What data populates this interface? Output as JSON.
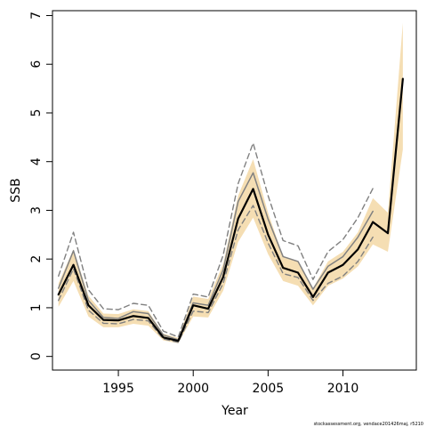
{
  "chart_data": {
    "type": "line",
    "xlabel": "Year",
    "ylabel": "SSB",
    "xlim": [
      1990.6,
      2014.9
    ],
    "ylim": [
      -0.28,
      7.1
    ],
    "x_ticks": [
      1995,
      2000,
      2005,
      2010
    ],
    "x_tick_labels": [
      "1995",
      "2000",
      "2005",
      "2010"
    ],
    "y_ticks": [
      0,
      1,
      2,
      3,
      4,
      5,
      6,
      7
    ],
    "y_tick_labels": [
      "0",
      "1",
      "2",
      "3",
      "4",
      "5",
      "6",
      "7"
    ],
    "grid": false,
    "years": [
      1991,
      1992,
      1993,
      1994,
      1995,
      1996,
      1997,
      1998,
      1999,
      2000,
      2001,
      2002,
      2003,
      2004,
      2005,
      2006,
      2007,
      2008,
      2009,
      2010,
      2011,
      2012,
      2013,
      2014
    ],
    "band_color": "#f5deb3",
    "series": [
      {
        "style": "band",
        "x": [
          1991,
          1992,
          1993,
          1994,
          1995,
          1996,
          1997,
          1998,
          1999,
          2000,
          2001,
          2002,
          2003,
          2004,
          2005,
          2006,
          2007,
          2008,
          2009,
          2010,
          2011,
          2012,
          2013,
          2014
        ],
        "lower": [
          1.02,
          1.55,
          0.82,
          0.6,
          0.6,
          0.67,
          0.63,
          0.33,
          0.27,
          0.82,
          0.8,
          1.35,
          2.35,
          2.85,
          2.1,
          1.55,
          1.45,
          1.05,
          1.45,
          1.6,
          1.85,
          2.3,
          2.15,
          4.25
        ],
        "upper": [
          1.5,
          2.2,
          1.25,
          0.88,
          0.87,
          0.97,
          0.93,
          0.47,
          0.38,
          1.23,
          1.18,
          1.9,
          3.3,
          4.05,
          2.95,
          2.05,
          1.95,
          1.4,
          1.95,
          2.15,
          2.55,
          3.25,
          2.95,
          6.85
        ]
      },
      {
        "style": "solid-black",
        "color": "#000000",
        "x": [
          1991,
          1992,
          1993,
          1994,
          1995,
          1996,
          1997,
          1998,
          1999,
          2000,
          2001,
          2002,
          2003,
          2004,
          2005,
          2006,
          2007,
          2008,
          2009,
          2010,
          2011,
          2012,
          2013,
          2014
        ],
        "values": [
          1.27,
          1.88,
          1.05,
          0.75,
          0.74,
          0.83,
          0.79,
          0.39,
          0.32,
          1.05,
          0.98,
          1.63,
          2.83,
          3.44,
          2.5,
          1.82,
          1.72,
          1.22,
          1.72,
          1.88,
          2.2,
          2.76,
          2.53,
          5.7
        ]
      },
      {
        "style": "solid-gray",
        "color": "#808080",
        "x": [
          1991,
          1992,
          1993,
          1994,
          1995,
          1996,
          1997,
          1998,
          1999,
          2000,
          2001,
          2002,
          2003,
          2004,
          2005,
          2006,
          2007,
          2008,
          2009,
          2010,
          2011,
          2012
        ],
        "values": [
          1.4,
          2.17,
          1.15,
          0.8,
          0.78,
          0.92,
          0.88,
          0.44,
          0.34,
          1.1,
          1.05,
          1.78,
          3.18,
          3.77,
          2.82,
          2.05,
          1.95,
          1.38,
          1.85,
          2.05,
          2.45,
          2.98
        ]
      },
      {
        "style": "dashed-gray",
        "color": "#808080",
        "x": [
          1991,
          1992,
          1993,
          1994,
          1995,
          1996,
          1997,
          1998,
          1999,
          2000,
          2001,
          2002,
          2003,
          2004,
          2005,
          2006,
          2007,
          2008,
          2009,
          2010,
          2011,
          2012
        ],
        "values": [
          1.65,
          2.55,
          1.37,
          0.98,
          0.96,
          1.09,
          1.05,
          0.52,
          0.4,
          1.28,
          1.22,
          2.08,
          3.55,
          4.38,
          3.3,
          2.38,
          2.27,
          1.58,
          2.15,
          2.4,
          2.85,
          3.45
        ]
      },
      {
        "style": "dashed-gray",
        "color": "#808080",
        "x": [
          1991,
          1992,
          1993,
          1994,
          1995,
          1996,
          1997,
          1998,
          1999,
          2000,
          2001,
          2002,
          2003,
          2004,
          2005,
          2006,
          2007,
          2008,
          2009,
          2010,
          2011,
          2012
        ],
        "values": [
          1.15,
          1.8,
          0.95,
          0.68,
          0.67,
          0.76,
          0.73,
          0.36,
          0.29,
          0.93,
          0.9,
          1.5,
          2.6,
          3.1,
          2.33,
          1.7,
          1.62,
          1.15,
          1.5,
          1.65,
          1.95,
          2.45
        ]
      }
    ]
  },
  "footnote": "stockassessment.org, vendace201426maj, r5210"
}
